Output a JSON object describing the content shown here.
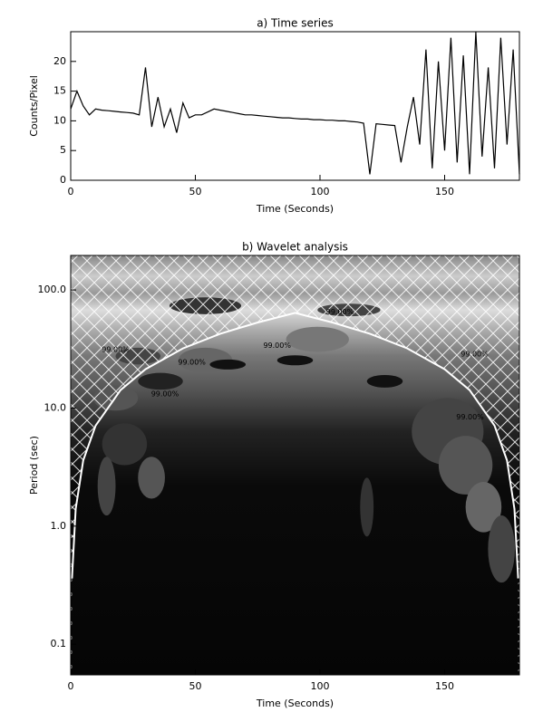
{
  "chart_data": [
    {
      "type": "line",
      "title": "a) Time series",
      "x_label": "Time (Seconds)",
      "y_label": "Counts/Pixel",
      "x": [
        0,
        2.5,
        5,
        7.5,
        10,
        12.5,
        15,
        17.5,
        20,
        22.5,
        25,
        27.5,
        30,
        32.5,
        35,
        37.5,
        40,
        42.5,
        45,
        47.5,
        50,
        52.5,
        55,
        57.5,
        60,
        62.5,
        65,
        67.5,
        70,
        72.5,
        75,
        77.5,
        80,
        82.5,
        85,
        87.5,
        90,
        92.5,
        95,
        97.5,
        100,
        102.5,
        105,
        107.5,
        110,
        112.5,
        115,
        117.5,
        120,
        122.5,
        125,
        127.5,
        130,
        132.5,
        135,
        137.5,
        140,
        142.5,
        145,
        147.5,
        150,
        152.5,
        155,
        157.5,
        160,
        162.5,
        165,
        167.5,
        170,
        172.5,
        175,
        177.5,
        180
      ],
      "series": [
        {
          "color": "#000000",
          "values": [
            12,
            15,
            12.5,
            11,
            12,
            11.8,
            11.7,
            11.6,
            11.5,
            11.4,
            11.3,
            11,
            19,
            9,
            14,
            9,
            12,
            8,
            13,
            10.5,
            11,
            11,
            11.5,
            12,
            11.8,
            11.6,
            11.4,
            11.2,
            11,
            11,
            10.9,
            10.8,
            10.7,
            10.6,
            10.5,
            10.5,
            10.4,
            10.3,
            10.3,
            10.2,
            10.2,
            10.1,
            10.1,
            10,
            10,
            9.9,
            9.8,
            9.6,
            1,
            9.5,
            9.4,
            9.3,
            9.2,
            3,
            9,
            14,
            6,
            22,
            2,
            20,
            5,
            24,
            3,
            21,
            1,
            25,
            4,
            19,
            2,
            24,
            6,
            22,
            1
          ]
        }
      ],
      "xlim": [
        0,
        180
      ],
      "xticks": [
        0,
        50,
        100,
        150
      ],
      "ylim": [
        0,
        25
      ],
      "yticks": [
        0,
        5,
        10,
        15,
        20
      ]
    },
    {
      "type": "wavelet",
      "title": "b) Wavelet analysis",
      "x_label": "Time (Seconds)",
      "y_label": "Period (sec)",
      "xlim": [
        0,
        180
      ],
      "xticks": [
        0,
        50,
        100,
        150
      ],
      "ylim": [
        0.055,
        196
      ],
      "log_y": true,
      "yticks": [
        {
          "value": 100,
          "label": "100.0"
        },
        {
          "value": 10,
          "label": "10.0"
        },
        {
          "value": 1,
          "label": "1.0"
        },
        0.1
      ],
      "cone_of_influence": {
        "color": "#ffffff",
        "x": [
          0.5,
          2,
          5,
          10,
          20,
          30,
          45,
          60,
          75,
          90,
          105,
          120,
          135,
          150,
          160,
          170,
          175,
          178,
          179.5
        ],
        "values": [
          0.36,
          1.4,
          3.6,
          7.1,
          14.2,
          21.3,
          32,
          42.6,
          53,
          64,
          53,
          42.6,
          32,
          21.3,
          14.2,
          7.1,
          3.6,
          1.4,
          0.36
        ]
      },
      "annotations": [
        "99.00%",
        "99.00%",
        "99.00%",
        "99.00%",
        "99.00%",
        "99.00%",
        "99.00%"
      ]
    }
  ]
}
